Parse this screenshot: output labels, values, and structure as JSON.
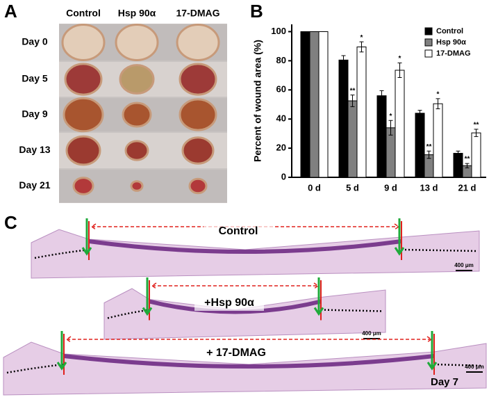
{
  "panel_a": {
    "letter": "A",
    "columns": [
      "Control",
      "Hsp 90α",
      "17-DMAG"
    ],
    "rows": [
      "Day 0",
      "Day 5",
      "Day 9",
      "Day 13",
      "Day 21"
    ]
  },
  "chart_data": {
    "type": "bar",
    "letter": "B",
    "y_label": "Percent of wound area (%)",
    "categories": [
      "0 d",
      "5 d",
      "9 d",
      "13 d",
      "21 d"
    ],
    "series": [
      {
        "name": "Control",
        "color": "#000000",
        "values": [
          100,
          80.5,
          56,
          44,
          16.5
        ],
        "errors": [
          0,
          3,
          3.5,
          2,
          1.5
        ],
        "significance": [
          null,
          null,
          null,
          null,
          null
        ]
      },
      {
        "name": "Hsp 90α",
        "color": "#808080",
        "values": [
          100,
          52.5,
          34,
          15.5,
          8
        ],
        "errors": [
          0,
          4,
          5,
          2.5,
          1.5
        ],
        "significance": [
          null,
          "**",
          "*",
          "**",
          "**"
        ]
      },
      {
        "name": "17-DMAG",
        "color": "#ffffff",
        "values": [
          100,
          89.5,
          73.5,
          50.5,
          30.5
        ],
        "errors": [
          0,
          3.5,
          5,
          3.5,
          2.5
        ],
        "significance": [
          null,
          "*",
          "*",
          "*",
          "**"
        ]
      }
    ],
    "ylim": [
      0,
      105
    ],
    "yticks": [
      0,
      20,
      40,
      60,
      80,
      100
    ],
    "legend": "top-right"
  },
  "panel_c": {
    "letter": "C",
    "labels": [
      "Control",
      "+Hsp 90α",
      "+ 17-DMAG"
    ],
    "scale_bars": [
      "400 μm",
      "400 μm",
      "400 μm"
    ],
    "day": "Day 7"
  }
}
